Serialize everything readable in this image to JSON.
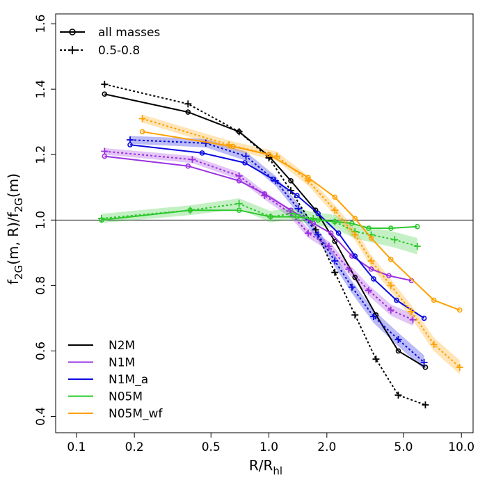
{
  "chart_data": {
    "type": "line",
    "xscale": "log",
    "xlim": [
      0.078,
      11.5
    ],
    "ylim": [
      0.35,
      1.63
    ],
    "xlabel": {
      "base": "R/R",
      "sub": "hl"
    },
    "ylabel": {
      "f1": "f",
      "s1": "2G",
      "a1": "(m, R)/f",
      "s2": "2G",
      "a2": "(m)"
    },
    "x_ticks": [
      {
        "v": 0.1,
        "label": "0.1"
      },
      {
        "v": 0.2,
        "label": "0.2"
      },
      {
        "v": 0.5,
        "label": "0.5"
      },
      {
        "v": 1.0,
        "label": "1.0"
      },
      {
        "v": 2.0,
        "label": "2.0"
      },
      {
        "v": 5.0,
        "label": "5.0"
      },
      {
        "v": 10.0,
        "label": "10.0"
      }
    ],
    "y_ticks": [
      {
        "v": 0.4,
        "label": "0.4"
      },
      {
        "v": 0.6,
        "label": "0.6"
      },
      {
        "v": 0.8,
        "label": "0.8"
      },
      {
        "v": 1.0,
        "label": "1.0"
      },
      {
        "v": 1.2,
        "label": "1.2"
      },
      {
        "v": 1.4,
        "label": "1.4"
      },
      {
        "v": 1.6,
        "label": "1.6"
      }
    ],
    "reference_line": 1.0,
    "line_styles_legend": [
      {
        "label": "all masses",
        "style": "solid",
        "marker": "circle"
      },
      {
        "label": "0.5-0.8",
        "style": "dotted",
        "marker": "plus"
      }
    ],
    "models_legend": [
      {
        "label": "N2M",
        "color": "#000000"
      },
      {
        "label": "N1M",
        "color": "#9b30e0"
      },
      {
        "label": "N1M_a",
        "color": "#0a0ae0"
      },
      {
        "label": "N05M",
        "color": "#2ec82e"
      },
      {
        "label": "N05M_wf",
        "color": "#ffa000"
      }
    ],
    "series": [
      {
        "name": "N2M all masses",
        "color": "#000000",
        "style": "solid",
        "marker": "circle",
        "x": [
          0.14,
          0.38,
          0.7,
          1.0,
          1.3,
          1.75,
          2.2,
          2.8,
          3.6,
          4.7,
          6.5
        ],
        "y": [
          1.385,
          1.33,
          1.27,
          1.195,
          1.12,
          1.03,
          0.935,
          0.825,
          0.71,
          0.6,
          0.55
        ]
      },
      {
        "name": "N2M 0.5-0.8",
        "color": "#000000",
        "style": "dotted",
        "marker": "plus",
        "x": [
          0.14,
          0.38,
          0.7,
          1.0,
          1.3,
          1.75,
          2.2,
          2.8,
          3.6,
          4.7,
          6.5
        ],
        "y": [
          1.415,
          1.355,
          1.27,
          1.19,
          1.09,
          0.97,
          0.84,
          0.71,
          0.575,
          0.465,
          0.435
        ]
      },
      {
        "name": "N1M all masses",
        "color": "#9b30e0",
        "style": "solid",
        "marker": "circle",
        "x": [
          0.14,
          0.38,
          0.7,
          0.95,
          1.3,
          1.7,
          2.1,
          2.7,
          3.4,
          4.2,
          5.5
        ],
        "y": [
          1.195,
          1.165,
          1.12,
          1.08,
          1.03,
          0.99,
          0.96,
          0.89,
          0.85,
          0.83,
          0.815
        ]
      },
      {
        "name": "N1M 0.5-0.8",
        "color": "#9b30e0",
        "style": "dotted",
        "marker": "plus",
        "x": [
          0.14,
          0.4,
          0.7,
          0.95,
          1.3,
          1.6,
          2.05,
          2.6,
          3.3,
          4.3,
          5.6
        ],
        "y": [
          1.21,
          1.185,
          1.135,
          1.075,
          1.02,
          0.96,
          0.92,
          0.85,
          0.785,
          0.725,
          0.695
        ]
      },
      {
        "name": "N1M_a all masses",
        "color": "#0a0ae0",
        "style": "solid",
        "marker": "circle",
        "x": [
          0.19,
          0.45,
          0.75,
          1.05,
          1.4,
          1.8,
          2.3,
          2.8,
          3.5,
          4.6,
          6.4
        ],
        "y": [
          1.23,
          1.205,
          1.175,
          1.125,
          1.075,
          1.02,
          0.96,
          0.89,
          0.82,
          0.755,
          0.7
        ]
      },
      {
        "name": "N1M_a 0.5-0.8",
        "color": "#0a0ae0",
        "style": "dotted",
        "marker": "plus",
        "x": [
          0.19,
          0.47,
          0.76,
          1.08,
          1.42,
          1.8,
          2.2,
          2.7,
          3.5,
          4.7,
          6.4
        ],
        "y": [
          1.245,
          1.235,
          1.195,
          1.12,
          1.035,
          0.955,
          0.875,
          0.795,
          0.705,
          0.635,
          0.565
        ]
      },
      {
        "name": "N05M all masses",
        "color": "#2ec82e",
        "style": "solid",
        "marker": "circle",
        "x": [
          0.135,
          0.39,
          0.7,
          1.02,
          1.4,
          1.8,
          2.2,
          2.7,
          3.3,
          4.3,
          5.9
        ],
        "y": [
          1.0,
          1.03,
          1.03,
          1.01,
          1.01,
          1.0,
          0.995,
          0.99,
          0.975,
          0.975,
          0.98
        ]
      },
      {
        "name": "N05M 0.5-0.8",
        "color": "#2ec82e",
        "style": "dotted",
        "marker": "plus",
        "x": [
          0.135,
          0.39,
          0.7,
          1.02,
          1.32,
          1.7,
          2.2,
          2.8,
          3.4,
          4.5,
          5.9
        ],
        "y": [
          1.005,
          1.03,
          1.05,
          1.01,
          1.02,
          1.005,
          0.995,
          0.965,
          0.955,
          0.94,
          0.92
        ]
      },
      {
        "name": "N05M_wf all masses",
        "color": "#ffa000",
        "style": "solid",
        "marker": "circle",
        "x": [
          0.22,
          0.65,
          1.0,
          1.6,
          2.2,
          2.8,
          3.4,
          4.3,
          7.2,
          9.8
        ],
        "y": [
          1.27,
          1.225,
          1.2,
          1.13,
          1.07,
          1.005,
          0.945,
          0.88,
          0.755,
          0.725
        ]
      },
      {
        "name": "N05M_wf 0.5-0.8",
        "color": "#ffa000",
        "style": "dotted",
        "marker": "plus",
        "x": [
          0.22,
          0.62,
          1.1,
          1.6,
          2.2,
          2.8,
          3.4,
          4.3,
          5.5,
          7.2,
          9.8
        ],
        "y": [
          1.31,
          1.23,
          1.195,
          1.12,
          1.03,
          0.955,
          0.875,
          0.8,
          0.72,
          0.62,
          0.55
        ]
      }
    ]
  }
}
